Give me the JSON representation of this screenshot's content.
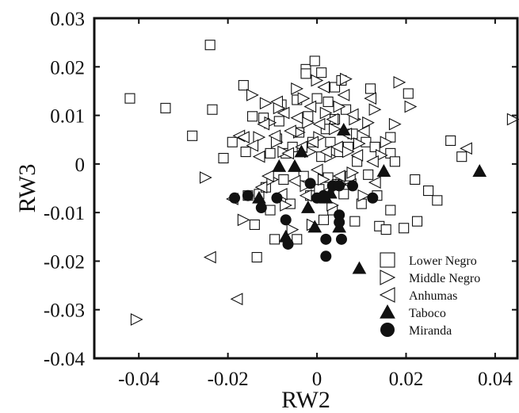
{
  "chart_data": {
    "type": "scatter",
    "xlabel": "RW2",
    "ylabel": "RW3",
    "xlim": [
      -0.05,
      0.045
    ],
    "ylim": [
      -0.04,
      0.03
    ],
    "x_ticks": [
      -0.04,
      -0.02,
      0,
      0.02,
      0.04
    ],
    "x_tick_labels": [
      "-0.04",
      "-0.02",
      "0",
      "0.02",
      "0.04"
    ],
    "y_ticks": [
      0.03,
      0.02,
      0.01,
      0,
      -0.01,
      -0.02,
      -0.03,
      -0.04
    ],
    "y_tick_labels": [
      "0.03",
      "0.02",
      "0.01",
      "0",
      "-0.01",
      "-0.02",
      "-0.03",
      "-0.04"
    ],
    "grid": false,
    "legend_position": "bottom-right",
    "series": [
      {
        "name": "Lower Negro",
        "marker": "open-square",
        "color": "#111111",
        "points": [
          [
            -0.042,
            0.0135
          ],
          [
            -0.034,
            0.0115
          ],
          [
            -0.028,
            0.0058
          ],
          [
            -0.024,
            0.0245
          ],
          [
            -0.0235,
            0.0112
          ],
          [
            -0.021,
            0.0012
          ],
          [
            -0.019,
            0.0045
          ],
          [
            -0.0165,
            0.0162
          ],
          [
            -0.016,
            0.0025
          ],
          [
            -0.0145,
            0.0098
          ],
          [
            -0.0155,
            -0.0065
          ],
          [
            -0.014,
            -0.0125
          ],
          [
            -0.013,
            -0.0062
          ],
          [
            -0.012,
            0.0095
          ],
          [
            -0.0115,
            -0.0048
          ],
          [
            -0.0105,
            -0.0095
          ],
          [
            -0.0095,
            -0.0155
          ],
          [
            -0.0135,
            -0.0192
          ],
          [
            -0.0105,
            0.0022
          ],
          [
            -0.009,
            0.0052
          ],
          [
            -0.008,
            0.0122
          ],
          [
            -0.0085,
            0.0088
          ],
          [
            -0.0075,
            -0.0032
          ],
          [
            -0.007,
            0.0022
          ],
          [
            -0.006,
            -0.0082
          ],
          [
            -0.0055,
            0.0035
          ],
          [
            -0.0045,
            0.0132
          ],
          [
            -0.0045,
            -0.0155
          ],
          [
            -0.004,
            0.0065
          ],
          [
            -0.003,
            -0.0025
          ],
          [
            -0.0025,
            0.0195
          ],
          [
            -0.0025,
            0.0186
          ],
          [
            -0.002,
            0.0098
          ],
          [
            -0.0015,
            -0.0065
          ],
          [
            -0.001,
            0.0045
          ],
          [
            0.0,
            0.0135
          ],
          [
            0.0005,
            -0.0052
          ],
          [
            0.001,
            0.0188
          ],
          [
            0.001,
            0.0015
          ],
          [
            0.0015,
            -0.0115
          ],
          [
            0.002,
            0.0072
          ],
          [
            0.0025,
            0.0128
          ],
          [
            0.0025,
            -0.0028
          ],
          [
            0.003,
            0.0045
          ],
          [
            -0.0005,
            0.0212
          ],
          [
            0.0035,
            -0.0095
          ],
          [
            0.004,
            0.0158
          ],
          [
            0.004,
            0.0092
          ],
          [
            0.0045,
            -0.0042
          ],
          [
            0.005,
            0.0025
          ],
          [
            0.0055,
            0.0172
          ],
          [
            0.006,
            -0.0062
          ],
          [
            0.0065,
            0.0112
          ],
          [
            0.007,
            0.0035
          ],
          [
            0.0075,
            -0.0025
          ],
          [
            0.008,
            0.0062
          ],
          [
            0.0085,
            -0.0118
          ],
          [
            0.009,
            0.0005
          ],
          [
            0.01,
            -0.0082
          ],
          [
            0.011,
            0.0045
          ],
          [
            0.0115,
            -0.0022
          ],
          [
            0.012,
            0.0155
          ],
          [
            0.013,
            0.0035
          ],
          [
            0.0135,
            -0.0065
          ],
          [
            0.014,
            -0.0128
          ],
          [
            0.0155,
            -0.0135
          ],
          [
            0.0165,
            0.0055
          ],
          [
            0.0165,
            0.0022
          ],
          [
            0.0175,
            0.0005
          ],
          [
            0.0165,
            -0.0095
          ],
          [
            0.0205,
            0.0145
          ],
          [
            0.022,
            -0.0032
          ],
          [
            0.0225,
            -0.0118
          ],
          [
            0.025,
            -0.0055
          ],
          [
            0.027,
            -0.0075
          ],
          [
            0.03,
            0.0048
          ],
          [
            0.0325,
            0.0015
          ],
          [
            0.0195,
            -0.0132
          ]
        ]
      },
      {
        "name": "Middle Negro",
        "marker": "open-triangle-right",
        "color": "#111111",
        "points": [
          [
            -0.0405,
            -0.032
          ],
          [
            -0.025,
            -0.0028
          ],
          [
            -0.0165,
            -0.0115
          ],
          [
            -0.0145,
            0.0142
          ],
          [
            -0.013,
            0.0055
          ],
          [
            -0.0115,
            0.0125
          ],
          [
            -0.0105,
            0.0085
          ],
          [
            -0.01,
            -0.0032
          ],
          [
            -0.009,
            0.0045
          ],
          [
            -0.0085,
            0.0115
          ],
          [
            -0.0075,
            0.0025
          ],
          [
            -0.007,
            -0.0085
          ],
          [
            -0.0055,
            -0.0135
          ],
          [
            -0.0045,
            0.0155
          ],
          [
            -0.004,
            0.0065
          ],
          [
            -0.003,
            0.0135
          ],
          [
            -0.0025,
            -0.0045
          ],
          [
            -0.002,
            0.0085
          ],
          [
            -0.0015,
            0.0025
          ],
          [
            -0.001,
            -0.0125
          ],
          [
            0.0,
            0.0172
          ],
          [
            0.0005,
            0.0055
          ],
          [
            0.0015,
            -0.0032
          ],
          [
            0.002,
            0.0105
          ],
          [
            0.003,
            0.0015
          ],
          [
            0.0035,
            -0.0085
          ],
          [
            0.004,
            0.0072
          ],
          [
            0.005,
            0.0118
          ],
          [
            0.0055,
            -0.0042
          ],
          [
            0.0065,
            0.0175
          ],
          [
            0.007,
            0.0025
          ],
          [
            0.008,
            -0.0018
          ],
          [
            0.0085,
            0.0092
          ],
          [
            0.0095,
            0.0042
          ],
          [
            0.0105,
            -0.0065
          ],
          [
            0.0115,
            0.0085
          ],
          [
            0.013,
            0.0112
          ],
          [
            0.0145,
            0.0018
          ],
          [
            0.0155,
            0.0045
          ],
          [
            0.0175,
            0.0082
          ],
          [
            0.0185,
            0.0168
          ],
          [
            0.021,
            0.0118
          ],
          [
            0.044,
            0.0092
          ]
        ]
      },
      {
        "name": "Anhumas",
        "marker": "open-triangle-left",
        "color": "#111111",
        "points": [
          [
            -0.024,
            -0.0192
          ],
          [
            -0.018,
            -0.0278
          ],
          [
            -0.019,
            -0.0072
          ],
          [
            -0.0175,
            0.0058
          ],
          [
            -0.0165,
            0.0055
          ],
          [
            -0.0145,
            0.0038
          ],
          [
            -0.013,
            0.0015
          ],
          [
            -0.0125,
            -0.0048
          ],
          [
            -0.012,
            0.0082
          ],
          [
            -0.011,
            -0.0025
          ],
          [
            -0.0095,
            0.0058
          ],
          [
            -0.009,
            0.0128
          ],
          [
            -0.008,
            -0.0062
          ],
          [
            -0.0075,
            0.0105
          ],
          [
            -0.0065,
            0.0022
          ],
          [
            -0.006,
            0.0068
          ],
          [
            -0.005,
            -0.0035
          ],
          [
            -0.0045,
            0.0095
          ],
          [
            -0.0035,
            0.0035
          ],
          [
            -0.0025,
            -0.0065
          ],
          [
            -0.0015,
            0.0118
          ],
          [
            -0.001,
            0.0045
          ],
          [
            0.0,
            -0.0012
          ],
          [
            0.0005,
            0.0082
          ],
          [
            0.0015,
            0.0158
          ],
          [
            0.002,
            0.0025
          ],
          [
            0.0025,
            -0.0055
          ],
          [
            0.0035,
            0.0092
          ],
          [
            0.0045,
            0.0035
          ],
          [
            0.005,
            -0.0025
          ],
          [
            0.006,
            0.0142
          ],
          [
            0.0065,
            0.0062
          ],
          [
            0.0075,
            -0.0042
          ],
          [
            0.008,
            0.0102
          ],
          [
            0.009,
            0.0018
          ],
          [
            0.0105,
            0.0068
          ],
          [
            0.012,
            0.0135
          ],
          [
            0.0125,
            0.0005
          ],
          [
            0.013,
            -0.0038
          ],
          [
            0.0335,
            0.0032
          ]
        ]
      },
      {
        "name": "Taboco",
        "marker": "filled-triangle-up",
        "color": "#111111",
        "points": [
          [
            -0.013,
            -0.007
          ],
          [
            -0.0085,
            -0.0005
          ],
          [
            -0.007,
            -0.015
          ],
          [
            -0.005,
            -0.0005
          ],
          [
            -0.0035,
            0.0025
          ],
          [
            -0.002,
            -0.009
          ],
          [
            -0.0005,
            -0.013
          ],
          [
            0.002,
            -0.007
          ],
          [
            0.003,
            -0.006
          ],
          [
            0.005,
            -0.013
          ],
          [
            0.006,
            0.007
          ],
          [
            0.0095,
            -0.0215
          ],
          [
            0.015,
            -0.0015
          ],
          [
            0.0365,
            -0.0015
          ]
        ]
      },
      {
        "name": "Miranda",
        "marker": "filled-circle",
        "color": "#111111",
        "points": [
          [
            -0.0185,
            -0.007
          ],
          [
            -0.0155,
            -0.0065
          ],
          [
            -0.0125,
            -0.009
          ],
          [
            -0.009,
            -0.007
          ],
          [
            -0.007,
            -0.0115
          ],
          [
            -0.0065,
            -0.0165
          ],
          [
            -0.0015,
            -0.004
          ],
          [
            0.0,
            -0.007
          ],
          [
            0.0015,
            -0.0065
          ],
          [
            0.002,
            -0.0155
          ],
          [
            0.0035,
            -0.0045
          ],
          [
            0.005,
            -0.0105
          ],
          [
            0.0055,
            -0.0155
          ],
          [
            0.005,
            -0.0045
          ],
          [
            0.008,
            -0.0045
          ],
          [
            0.0125,
            -0.007
          ],
          [
            0.002,
            -0.019
          ],
          [
            0.005,
            -0.012
          ]
        ]
      }
    ]
  }
}
